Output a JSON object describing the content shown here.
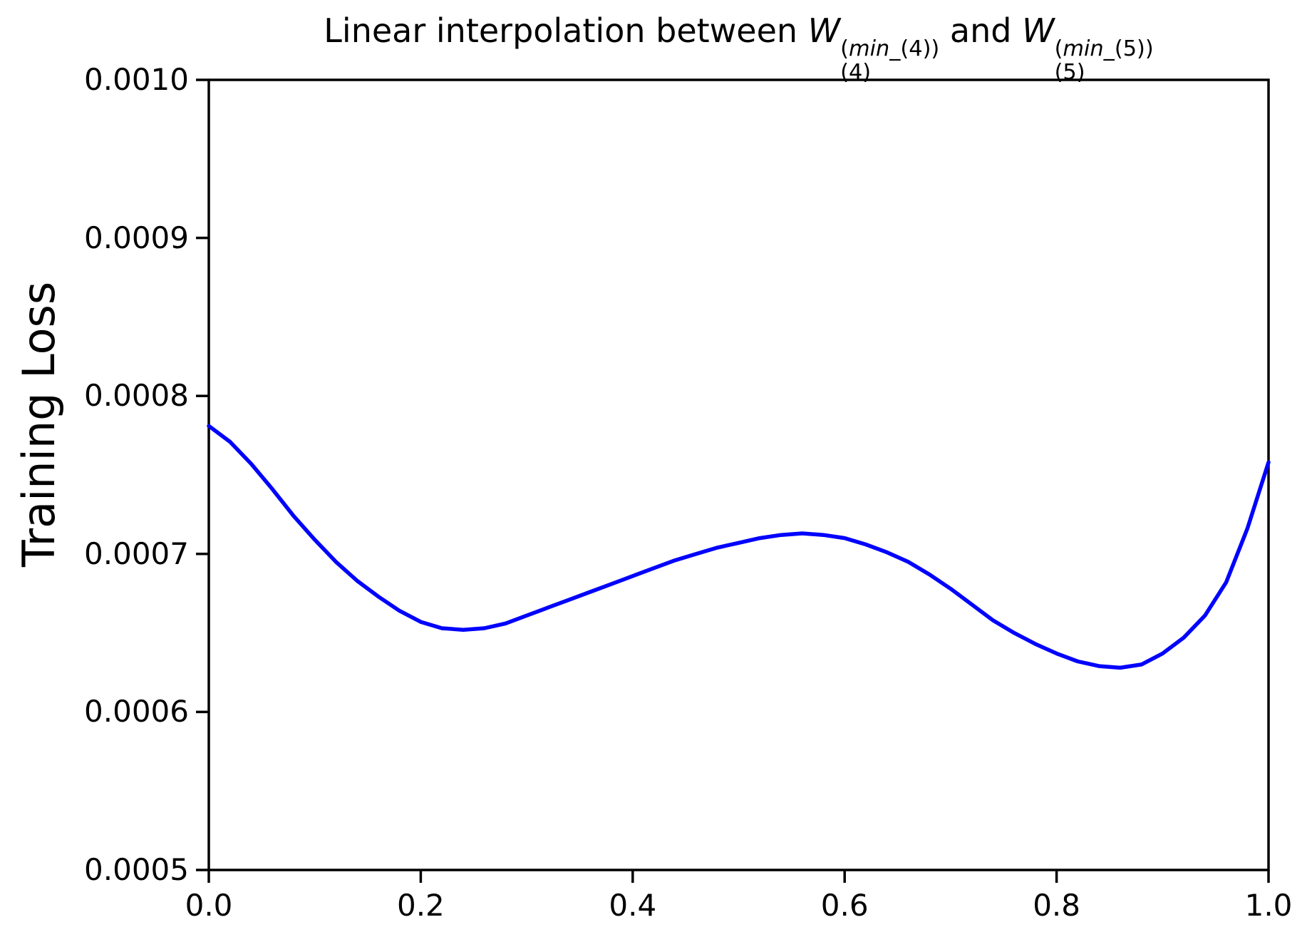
{
  "title": {
    "prefix": "Linear interpolation between ",
    "connector": " and ",
    "terms": [
      {
        "base": "W",
        "sup_open": "(",
        "sup_min": "min",
        "sup_rest": "_(4))",
        "sub": "(4)"
      },
      {
        "base": "W",
        "sup_open": "(",
        "sup_min": "min",
        "sup_rest": "_(5))",
        "sub": "(5)"
      }
    ]
  },
  "y_axis": {
    "label": "Training Loss",
    "tick_labels": [
      "0.0005",
      "0.0006",
      "0.0007",
      "0.0008",
      "0.0009",
      "0.0010"
    ],
    "tick_values": [
      0.0005,
      0.0006,
      0.0007,
      0.0008,
      0.0009,
      0.001
    ]
  },
  "x_axis": {
    "label": "",
    "tick_labels": [
      "0.0",
      "0.2",
      "0.4",
      "0.6",
      "0.8",
      "1.0"
    ],
    "tick_values": [
      0.0,
      0.2,
      0.4,
      0.6,
      0.8,
      1.0
    ]
  },
  "chart_data": {
    "type": "line",
    "title": "Linear interpolation between W_(4)^(min_(4)) and W_(5)^(min_(5))",
    "xlabel": "",
    "ylabel": "Training Loss",
    "xlim": [
      0.0,
      1.0
    ],
    "ylim": [
      0.0005,
      0.001
    ],
    "grid": false,
    "legend": "none",
    "line_color": "#0000ff",
    "series": [
      {
        "name": "training_loss_interpolation",
        "x": [
          0.0,
          0.02,
          0.04,
          0.06,
          0.08,
          0.1,
          0.12,
          0.14,
          0.16,
          0.18,
          0.2,
          0.22,
          0.24,
          0.26,
          0.28,
          0.3,
          0.32,
          0.34,
          0.36,
          0.38,
          0.4,
          0.42,
          0.44,
          0.46,
          0.48,
          0.5,
          0.52,
          0.54,
          0.56,
          0.58,
          0.6,
          0.62,
          0.64,
          0.66,
          0.68,
          0.7,
          0.72,
          0.74,
          0.76,
          0.78,
          0.8,
          0.82,
          0.84,
          0.86,
          0.88,
          0.9,
          0.92,
          0.94,
          0.96,
          0.98,
          1.0
        ],
        "y": [
          0.000781,
          0.000771,
          0.000757,
          0.000741,
          0.000724,
          0.000709,
          0.000695,
          0.000683,
          0.000673,
          0.000664,
          0.000657,
          0.000653,
          0.000652,
          0.000653,
          0.000656,
          0.000661,
          0.000666,
          0.000671,
          0.000676,
          0.000681,
          0.000686,
          0.000691,
          0.000696,
          0.0007,
          0.000704,
          0.000707,
          0.00071,
          0.000712,
          0.000713,
          0.000712,
          0.00071,
          0.000706,
          0.000701,
          0.000695,
          0.000687,
          0.000678,
          0.000668,
          0.000658,
          0.00065,
          0.000643,
          0.000637,
          0.000632,
          0.000629,
          0.000628,
          0.00063,
          0.000637,
          0.000647,
          0.000661,
          0.000682,
          0.000716,
          0.000758
        ]
      }
    ]
  },
  "style": {
    "spine_color": "#000000",
    "background": "#ffffff",
    "curve_color": "#0000ff"
  }
}
